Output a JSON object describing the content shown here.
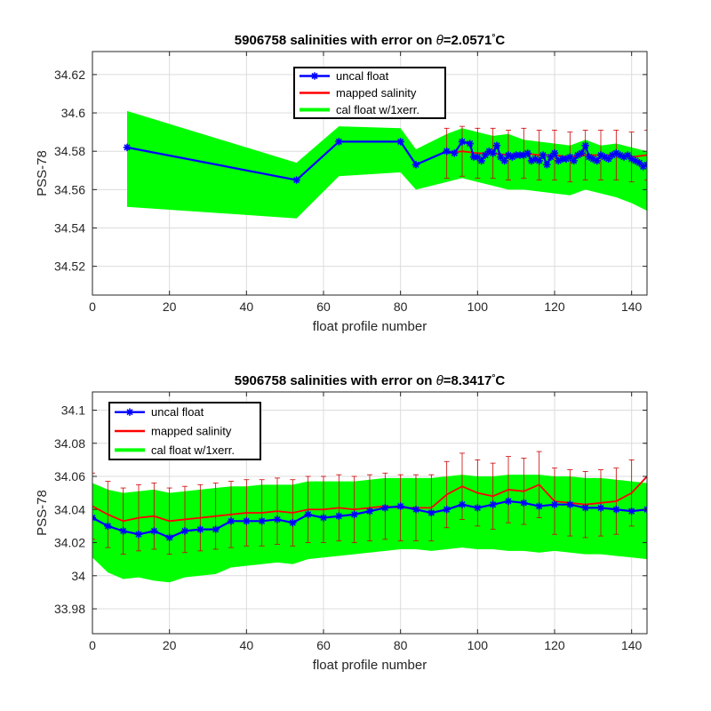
{
  "chart_data": [
    {
      "type": "line",
      "title_prefix": "5906758 salinities with error on ",
      "title_theta": "θ",
      "title_suffix": "=2.0571",
      "title_degree": "°",
      "title_unit": "C",
      "xlabel": "float profile number",
      "ylabel": "PSS-78",
      "xlim": [
        0,
        144
      ],
      "ylim": [
        34.505,
        34.632
      ],
      "xticks": [
        0,
        20,
        40,
        60,
        80,
        100,
        120,
        140
      ],
      "yticks": [
        34.52,
        34.54,
        34.56,
        34.58,
        34.6,
        34.62
      ],
      "ytick_labels": [
        "34.52",
        "34.54",
        "34.56",
        "34.58",
        "34.6",
        "34.62"
      ],
      "grid": true,
      "legend_position": "top-center",
      "legend": [
        {
          "label": "uncal float",
          "color": "#0000ff",
          "marker": "asterisk"
        },
        {
          "label": "mapped salinity",
          "color": "#ff0000"
        },
        {
          "label": "cal float w/1xerr.",
          "color": "#00ff00"
        }
      ],
      "cal_band": {
        "x": [
          9,
          53,
          64,
          80,
          84,
          92,
          96,
          100,
          104,
          108,
          112,
          116,
          120,
          124,
          128,
          132,
          136,
          140,
          144
        ],
        "upper": [
          34.601,
          34.574,
          34.593,
          34.592,
          34.581,
          34.589,
          34.592,
          34.59,
          34.588,
          34.589,
          34.586,
          34.585,
          34.584,
          34.583,
          34.586,
          34.583,
          34.584,
          34.582,
          34.58
        ],
        "lower": [
          34.551,
          34.545,
          34.567,
          34.569,
          34.56,
          34.564,
          34.566,
          34.564,
          34.562,
          34.56,
          34.56,
          34.559,
          34.558,
          34.557,
          34.56,
          34.558,
          34.556,
          34.553,
          34.549
        ]
      },
      "uncal_float": {
        "x": [
          9,
          53,
          64,
          80,
          84,
          92,
          94,
          96,
          98,
          99,
          100,
          101,
          102,
          103,
          104,
          105,
          106,
          107,
          108,
          109,
          110,
          111,
          112,
          113,
          114,
          115,
          116,
          117,
          118,
          119,
          120,
          121,
          122,
          123,
          124,
          125,
          126,
          127,
          128,
          129,
          130,
          131,
          132,
          133,
          134,
          135,
          136,
          137,
          138,
          139,
          140,
          141,
          142,
          143,
          144
        ],
        "y": [
          34.582,
          34.565,
          34.585,
          34.585,
          34.573,
          34.58,
          34.579,
          34.585,
          34.584,
          34.577,
          34.577,
          34.575,
          34.578,
          34.58,
          34.579,
          34.583,
          34.577,
          34.575,
          34.578,
          34.577,
          34.578,
          34.578,
          34.578,
          34.579,
          34.575,
          34.576,
          34.575,
          34.578,
          34.573,
          34.577,
          34.579,
          34.575,
          34.576,
          34.576,
          34.577,
          34.575,
          34.578,
          34.579,
          34.583,
          34.577,
          34.576,
          34.575,
          34.578,
          34.577,
          34.576,
          34.578,
          34.579,
          34.578,
          34.577,
          34.578,
          34.576,
          34.575,
          34.574,
          34.572,
          34.573
        ]
      },
      "mapped_salinity": {
        "x": [
          92,
          96,
          100,
          104,
          108,
          112,
          116,
          120,
          124,
          128,
          132,
          136,
          140,
          144
        ],
        "y": [
          34.579,
          34.58,
          34.579,
          34.579,
          34.578,
          34.579,
          34.578,
          34.578,
          34.577,
          34.578,
          34.578,
          34.578,
          34.577,
          34.578
        ]
      },
      "mapped_error": 0.013
    },
    {
      "type": "line",
      "title_prefix": "5906758 salinities with error on ",
      "title_theta": "θ",
      "title_suffix": "=8.3417",
      "title_degree": "°",
      "title_unit": "C",
      "xlabel": "float profile number",
      "ylabel": "PSS-78",
      "xlim": [
        0,
        144
      ],
      "ylim": [
        33.965,
        34.111
      ],
      "xticks": [
        0,
        20,
        40,
        60,
        80,
        100,
        120,
        140
      ],
      "yticks": [
        33.98,
        34.0,
        34.02,
        34.04,
        34.06,
        34.08,
        34.1
      ],
      "ytick_labels": [
        "33.98",
        "34",
        "34.02",
        "34.04",
        "34.06",
        "34.08",
        "34.1"
      ],
      "grid": true,
      "legend_position": "top-left",
      "legend": [
        {
          "label": "uncal float",
          "color": "#0000ff",
          "marker": "asterisk"
        },
        {
          "label": "mapped salinity",
          "color": "#ff0000"
        },
        {
          "label": "cal float w/1xerr.",
          "color": "#00ff00"
        }
      ],
      "uncal_float": {
        "x": [
          0,
          4,
          8,
          12,
          16,
          20,
          24,
          28,
          32,
          36,
          40,
          44,
          48,
          52,
          56,
          60,
          64,
          68,
          72,
          76,
          80,
          84,
          88,
          92,
          96,
          100,
          104,
          108,
          112,
          116,
          120,
          124,
          128,
          132,
          136,
          140,
          144
        ],
        "y": [
          34.035,
          34.03,
          34.027,
          34.025,
          34.027,
          34.023,
          34.027,
          34.028,
          34.028,
          34.033,
          34.033,
          34.033,
          34.034,
          34.032,
          34.037,
          34.035,
          34.036,
          34.037,
          34.039,
          34.041,
          34.042,
          34.04,
          34.038,
          34.04,
          34.043,
          34.041,
          34.043,
          34.045,
          34.044,
          34.042,
          34.043,
          34.043,
          34.041,
          34.041,
          34.04,
          34.039,
          34.04
        ]
      },
      "mapped_salinity": {
        "x": [
          0,
          4,
          8,
          12,
          16,
          20,
          24,
          28,
          32,
          36,
          40,
          44,
          48,
          52,
          56,
          60,
          64,
          68,
          72,
          76,
          80,
          84,
          88,
          92,
          96,
          100,
          104,
          108,
          112,
          116,
          120,
          124,
          128,
          132,
          136,
          140,
          144
        ],
        "y": [
          34.042,
          34.037,
          34.033,
          34.035,
          34.036,
          34.033,
          34.034,
          34.035,
          34.036,
          34.037,
          34.038,
          34.038,
          34.039,
          34.038,
          34.04,
          34.04,
          34.041,
          34.04,
          34.041,
          34.042,
          34.041,
          34.041,
          34.041,
          34.049,
          34.054,
          34.05,
          34.048,
          34.052,
          34.051,
          34.055,
          34.045,
          34.044,
          34.043,
          34.044,
          34.045,
          34.05,
          34.06
        ]
      },
      "mapped_error": 0.02,
      "cal_band": {
        "x": [
          0,
          4,
          8,
          12,
          16,
          20,
          24,
          28,
          32,
          36,
          40,
          44,
          48,
          52,
          56,
          60,
          64,
          68,
          72,
          76,
          80,
          84,
          88,
          92,
          96,
          100,
          104,
          108,
          112,
          116,
          120,
          124,
          128,
          132,
          136,
          140,
          144
        ],
        "upper": [
          34.056,
          34.052,
          34.05,
          34.051,
          34.052,
          34.05,
          34.051,
          34.052,
          34.053,
          34.054,
          34.054,
          34.055,
          34.055,
          34.055,
          34.057,
          34.057,
          34.057,
          34.057,
          34.058,
          34.059,
          34.059,
          34.059,
          34.059,
          34.06,
          34.061,
          34.06,
          34.06,
          34.061,
          34.061,
          34.061,
          34.06,
          34.06,
          34.059,
          34.059,
          34.058,
          34.057,
          34.056
        ],
        "lower": [
          34.011,
          34.002,
          33.998,
          33.999,
          33.997,
          33.996,
          33.999,
          34.0,
          34.001,
          34.005,
          34.006,
          34.007,
          34.008,
          34.007,
          34.01,
          34.011,
          34.012,
          34.013,
          34.014,
          34.015,
          34.016,
          34.016,
          34.015,
          34.016,
          34.017,
          34.016,
          34.016,
          34.015,
          34.015,
          34.014,
          34.015,
          34.014,
          34.013,
          34.013,
          34.012,
          34.011,
          34.01
        ]
      }
    }
  ]
}
